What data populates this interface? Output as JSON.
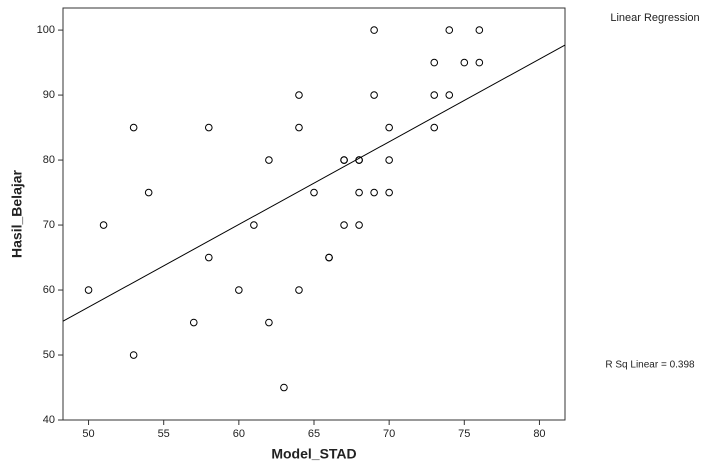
{
  "chart_data": {
    "type": "scatter",
    "xlabel": "Model_STAD",
    "ylabel": "Hasil_Belajar",
    "legend_label": "Linear Regression",
    "annotation": "R Sq Linear = 0.398",
    "x": [
      50,
      51,
      53,
      53,
      54,
      57,
      58,
      58,
      60,
      61,
      62,
      62,
      63,
      64,
      64,
      64,
      65,
      66,
      66,
      67,
      67,
      67,
      68,
      68,
      68,
      68,
      69,
      69,
      69,
      70,
      70,
      70,
      73,
      73,
      73,
      74,
      74,
      75,
      76,
      76
    ],
    "values": [
      60,
      70,
      85,
      50,
      75,
      55,
      85,
      65,
      60,
      70,
      80,
      55,
      45,
      90,
      85,
      60,
      75,
      65,
      65,
      80,
      80,
      70,
      80,
      80,
      75,
      70,
      100,
      90,
      75,
      85,
      80,
      75,
      95,
      90,
      85,
      100,
      90,
      95,
      100,
      95
    ],
    "fit_line": {
      "x": [
        48.3,
        81.7
      ],
      "y": [
        55.2,
        97.7
      ]
    },
    "xlim": [
      48.3,
      81.7
    ],
    "ylim": [
      40,
      103.4
    ],
    "xticks": [
      50,
      55,
      60,
      65,
      70,
      75,
      80
    ],
    "yticks": [
      40,
      50,
      60,
      70,
      80,
      90,
      100
    ],
    "color": "#000000"
  }
}
